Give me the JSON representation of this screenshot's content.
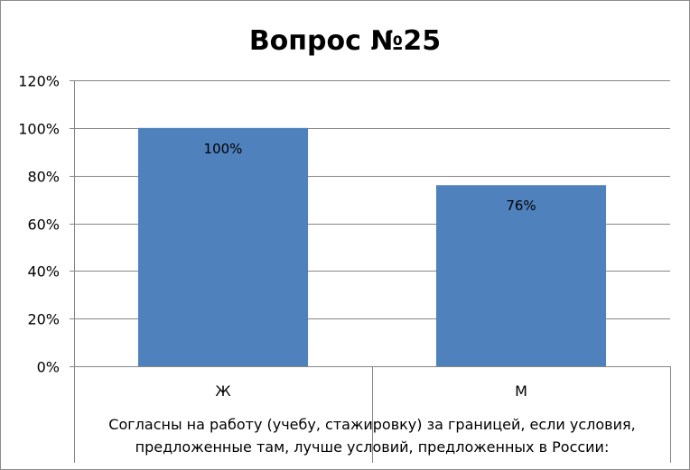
{
  "chart_data": {
    "type": "bar",
    "title": "Вопрос №25",
    "categories": [
      "Ж",
      "М"
    ],
    "values": [
      100,
      76
    ],
    "data_labels": [
      "100%",
      "76%"
    ],
    "ylim": [
      0,
      120
    ],
    "ytick_values": [
      0,
      20,
      40,
      60,
      80,
      100,
      120
    ],
    "ytick_labels": [
      "0%",
      "20%",
      "40%",
      "60%",
      "80%",
      "100%",
      "120%"
    ],
    "xlabel_lines": [
      "Согласны  на работу (учебу, стажировку) за границей,  если условия,",
      "предложенные там,  лучше условий, предложенных в России:"
    ],
    "ylabel": "",
    "grid": true,
    "legend": "none",
    "bar_color": "#4f81bd",
    "gridline_color": "#868686"
  }
}
